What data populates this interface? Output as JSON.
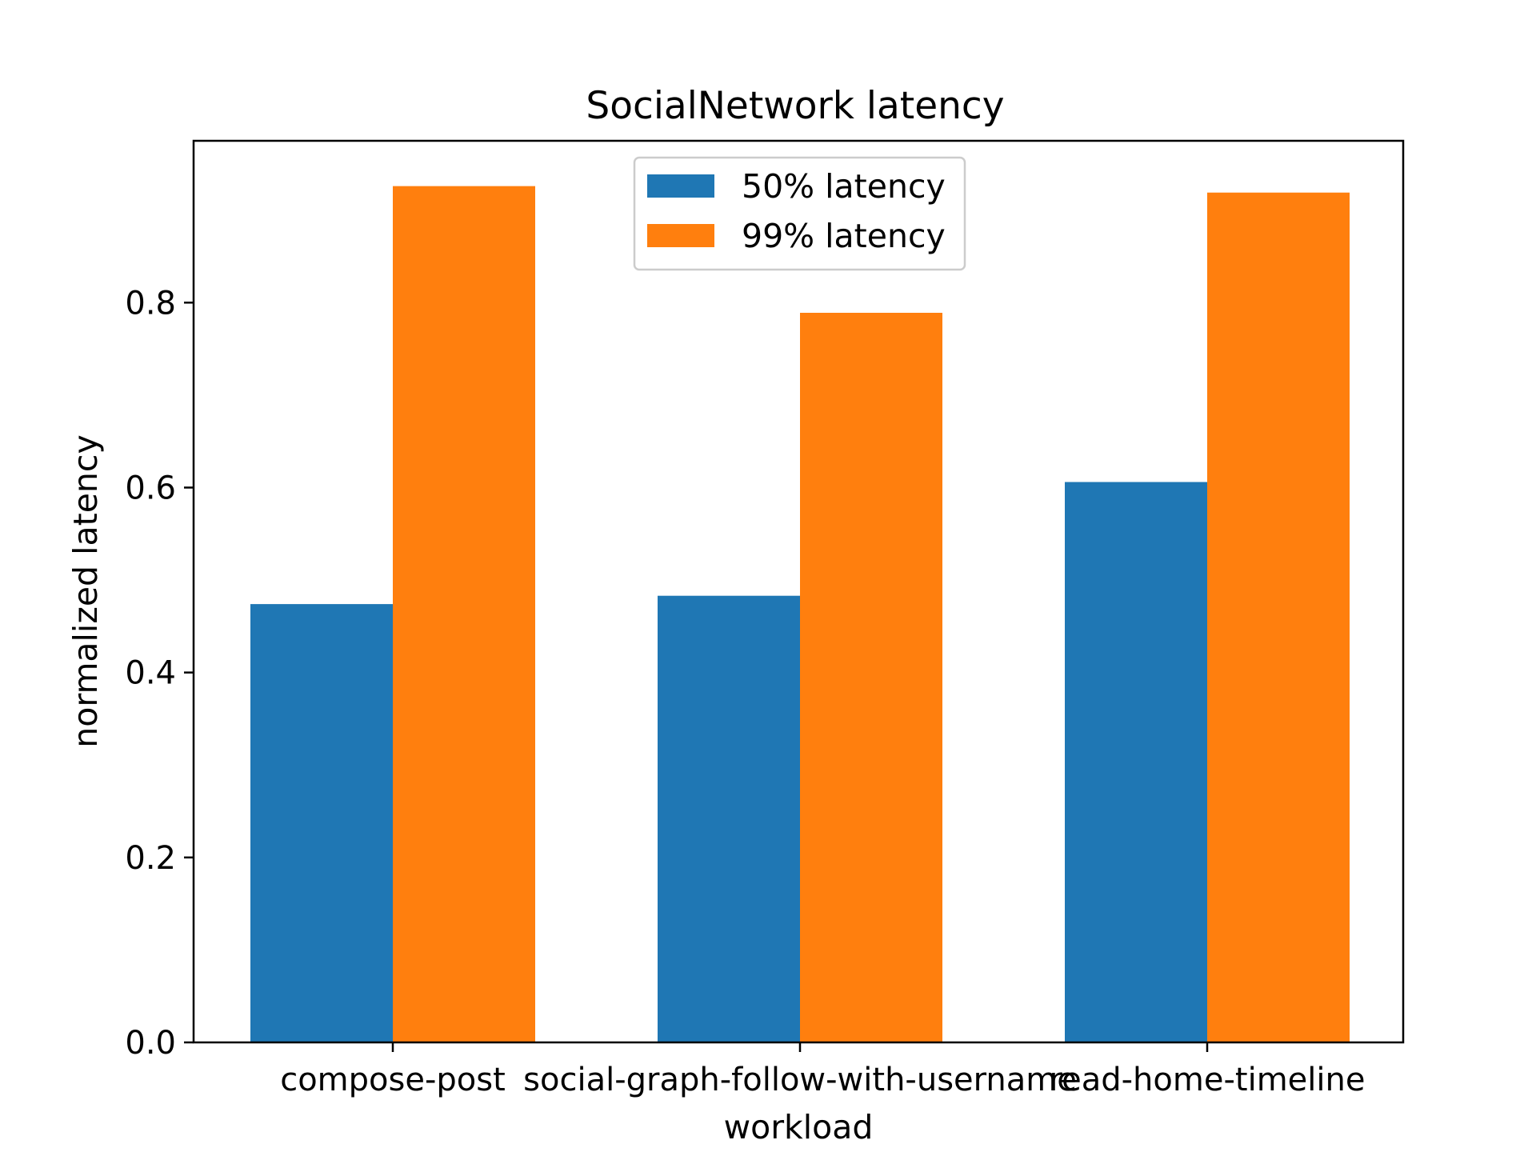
{
  "chart_data": {
    "type": "bar",
    "title": "SocialNetwork latency",
    "xlabel": "workload",
    "ylabel": "normalized latency",
    "categories": [
      "compose-post",
      "social-graph-follow-with-username",
      "read-home-timeline"
    ],
    "series": [
      {
        "name": "50% latency",
        "color": "#1f77b4",
        "values": [
          0.474,
          0.483,
          0.606
        ]
      },
      {
        "name": "99% latency",
        "color": "#ff7f0e",
        "values": [
          0.926,
          0.789,
          0.919
        ]
      }
    ],
    "ylim": [
      0,
      0.975
    ],
    "yticks": [
      0.0,
      0.2,
      0.4,
      0.6,
      0.8
    ],
    "ytick_labels": [
      "0.0",
      "0.2",
      "0.4",
      "0.6",
      "0.8"
    ],
    "grid": false,
    "legend_position": "top-center"
  }
}
